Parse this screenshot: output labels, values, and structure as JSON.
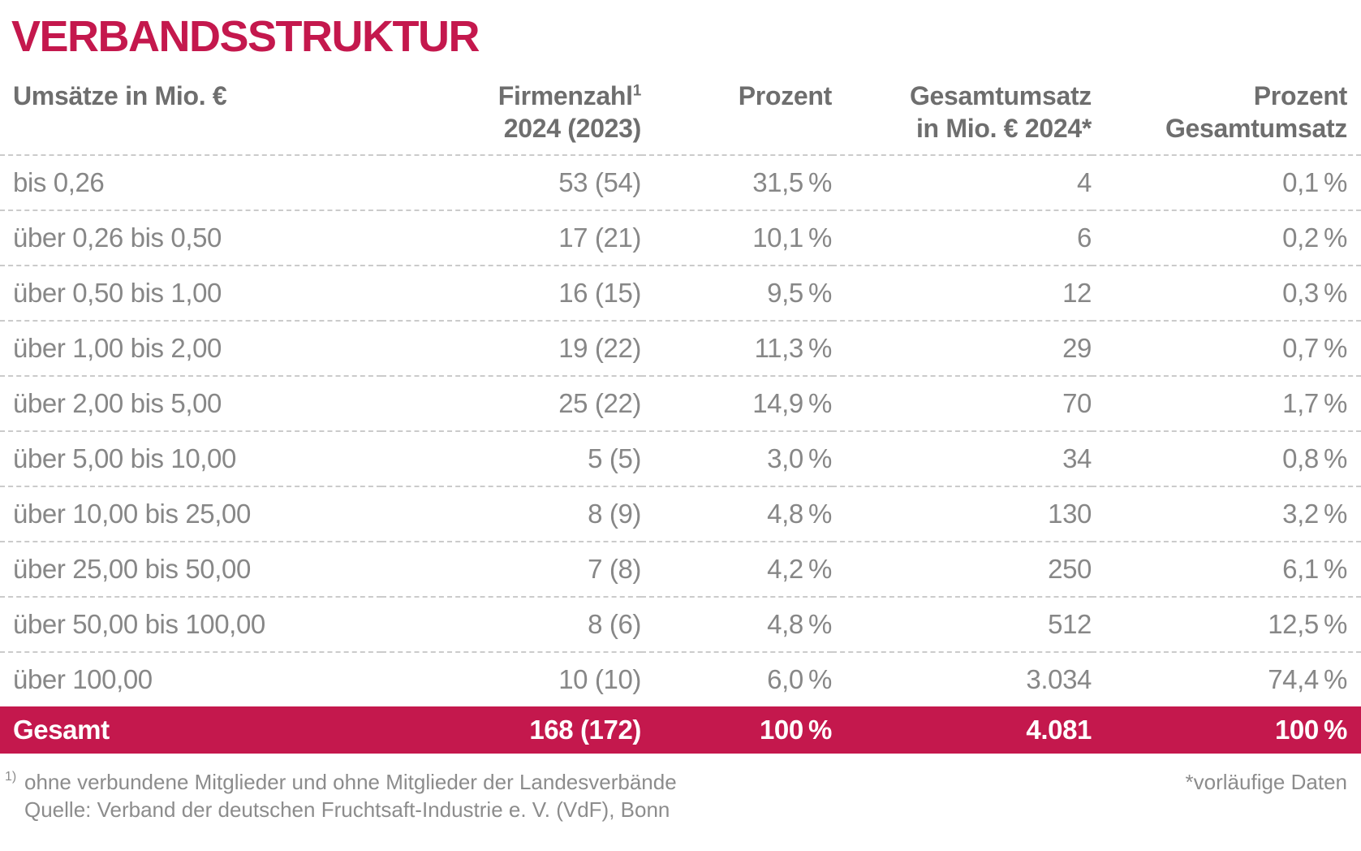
{
  "title": "VERBANDSSTRUKTUR",
  "colors": {
    "accent": "#C4184D",
    "header_text": "#6E6E6E",
    "body_text": "#878787",
    "divider": "#CBCBCB",
    "total_text": "#FFFFFF"
  },
  "table": {
    "headers": [
      {
        "line1": "Umsätze in Mio. €",
        "sup": "",
        "line2": ""
      },
      {
        "line1": "Firmenzahl",
        "sup": "1",
        "line2": "2024 (2023)"
      },
      {
        "line1": "Prozent",
        "sup": "",
        "line2": ""
      },
      {
        "line1": "Gesamtumsatz",
        "sup": "",
        "line2": "in Mio. € 2024*"
      },
      {
        "line1": "Prozent",
        "sup": "",
        "line2": "Gesamtumsatz"
      }
    ],
    "rows": [
      {
        "range": "bis 0,26",
        "firms": "53 (54)",
        "percent": "31,5 %",
        "revenue": "4",
        "revenue_percent": "0,1 %"
      },
      {
        "range": "über 0,26 bis 0,50",
        "firms": "17 (21)",
        "percent": "10,1 %",
        "revenue": "6",
        "revenue_percent": "0,2 %"
      },
      {
        "range": "über 0,50 bis 1,00",
        "firms": "16 (15)",
        "percent": "9,5 %",
        "revenue": "12",
        "revenue_percent": "0,3 %"
      },
      {
        "range": "über 1,00 bis 2,00",
        "firms": "19 (22)",
        "percent": "11,3 %",
        "revenue": "29",
        "revenue_percent": "0,7 %"
      },
      {
        "range": "über 2,00 bis 5,00",
        "firms": "25 (22)",
        "percent": "14,9 %",
        "revenue": "70",
        "revenue_percent": "1,7 %"
      },
      {
        "range": "über 5,00 bis 10,00",
        "firms": "5 (5)",
        "percent": "3,0 %",
        "revenue": "34",
        "revenue_percent": "0,8 %"
      },
      {
        "range": "über 10,00 bis 25,00",
        "firms": "8 (9)",
        "percent": "4,8 %",
        "revenue": "130",
        "revenue_percent": "3,2 %"
      },
      {
        "range": "über 25,00 bis 50,00",
        "firms": "7 (8)",
        "percent": "4,2 %",
        "revenue": "250",
        "revenue_percent": "6,1 %"
      },
      {
        "range": "über 50,00 bis 100,00",
        "firms": "8 (6)",
        "percent": "4,8 %",
        "revenue": "512",
        "revenue_percent": "12,5 %"
      },
      {
        "range": "über 100,00",
        "firms": "10 (10)",
        "percent": "6,0 %",
        "revenue": "3.034",
        "revenue_percent": "74,4 %"
      }
    ],
    "total": {
      "range": "Gesamt",
      "firms": "168 (172)",
      "percent": "100 %",
      "revenue": "4.081",
      "revenue_percent": "100 %"
    }
  },
  "footnotes": {
    "note1_sup": "1)",
    "note1": "ohne verbundene Mitglieder und ohne Mitglieder der Landesverbände",
    "source": "Quelle: Verband der deutschen Fruchtsaft-Industrie e. V. (VdF), Bonn",
    "preliminary": "*vorläufige Daten"
  },
  "chart_data": {
    "type": "table",
    "title": "VERBANDSSTRUKTUR",
    "columns": [
      "Umsätze in Mio. €",
      "Firmenzahl 2024 (2023)",
      "Prozent",
      "Gesamtumsatz in Mio. € 2024*",
      "Prozent Gesamtumsatz"
    ],
    "rows": [
      [
        "bis 0,26",
        "53 (54)",
        31.5,
        4,
        0.1
      ],
      [
        "über 0,26 bis 0,50",
        "17 (21)",
        10.1,
        6,
        0.2
      ],
      [
        "über 0,50 bis 1,00",
        "16 (15)",
        9.5,
        12,
        0.3
      ],
      [
        "über 1,00 bis 2,00",
        "19 (22)",
        11.3,
        29,
        0.7
      ],
      [
        "über 2,00 bis 5,00",
        "25 (22)",
        14.9,
        70,
        1.7
      ],
      [
        "über 5,00 bis 10,00",
        "5 (5)",
        3.0,
        34,
        0.8
      ],
      [
        "über 10,00 bis 25,00",
        "8 (9)",
        4.8,
        130,
        3.2
      ],
      [
        "über 25,00 bis 50,00",
        "7 (8)",
        4.2,
        250,
        6.1
      ],
      [
        "über 50,00 bis 100,00",
        "8 (6)",
        4.8,
        512,
        12.5
      ],
      [
        "über 100,00",
        "10 (10)",
        6.0,
        3034,
        74.4
      ]
    ],
    "total_row": [
      "Gesamt",
      "168 (172)",
      100,
      4081,
      100
    ],
    "units": {
      "firms": "count 2024 (2023)",
      "revenue": "Mio. €"
    },
    "footnotes": [
      "1) ohne verbundene Mitglieder und ohne Mitglieder der Landesverbände",
      "Quelle: Verband der deutschen Fruchtsaft-Industrie e. V. (VdF), Bonn",
      "*vorläufige Daten"
    ]
  }
}
